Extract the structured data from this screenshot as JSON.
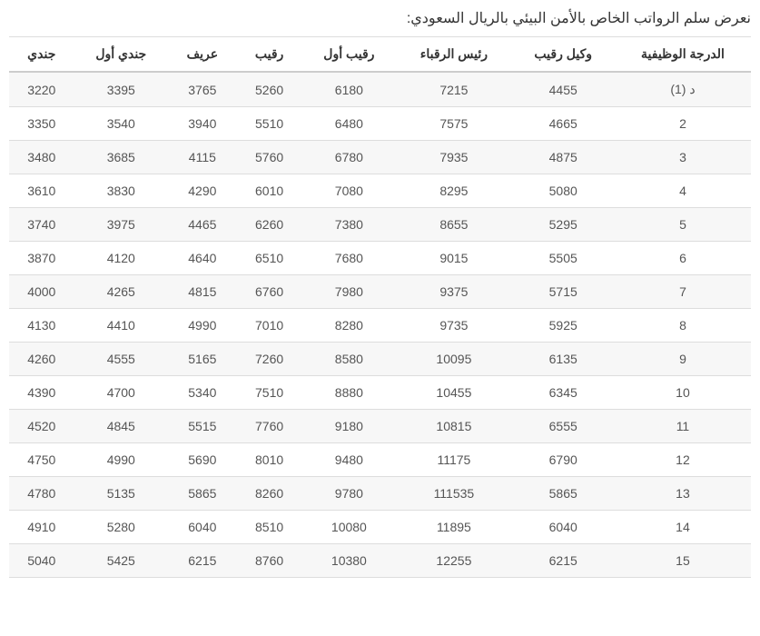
{
  "title": "نعرض سلم الرواتب الخاص بالأمن البيئي بالريال السعودي:",
  "table": {
    "columns": [
      "الدرجة الوظيفية",
      "وكيل رقيب",
      "رئيس الرقباء",
      "رقيب أول",
      "رقيب",
      "عريف",
      "جندي أول",
      "جندي"
    ],
    "rows": [
      [
        "د (1)",
        "4455",
        "7215",
        "6180",
        "5260",
        "3765",
        "3395",
        "3220"
      ],
      [
        "2",
        "4665",
        "7575",
        "6480",
        "5510",
        "3940",
        "3540",
        "3350"
      ],
      [
        "3",
        "4875",
        "7935",
        "6780",
        "5760",
        "4115",
        "3685",
        "3480"
      ],
      [
        "4",
        "5080",
        "8295",
        "7080",
        "6010",
        "4290",
        "3830",
        "3610"
      ],
      [
        "5",
        "5295",
        "8655",
        "7380",
        "6260",
        "4465",
        "3975",
        "3740"
      ],
      [
        "6",
        "5505",
        "9015",
        "7680",
        "6510",
        "4640",
        "4120",
        "3870"
      ],
      [
        "7",
        "5715",
        "9375",
        "7980",
        "6760",
        "4815",
        "4265",
        "4000"
      ],
      [
        "8",
        "5925",
        "9735",
        "8280",
        "7010",
        "4990",
        "4410",
        "4130"
      ],
      [
        "9",
        "6135",
        "10095",
        "8580",
        "7260",
        "5165",
        "4555",
        "4260"
      ],
      [
        "10",
        "6345",
        "10455",
        "8880",
        "7510",
        "5340",
        "4700",
        "4390"
      ],
      [
        "11",
        "6555",
        "10815",
        "9180",
        "7760",
        "5515",
        "4845",
        "4520"
      ],
      [
        "12",
        "6790",
        "11175",
        "9480",
        "8010",
        "5690",
        "4990",
        "4750"
      ],
      [
        "13",
        "5865",
        "111535",
        "9780",
        "8260",
        "5865",
        "5135",
        "4780"
      ],
      [
        "14",
        "6040",
        "11895",
        "10080",
        "8510",
        "6040",
        "5280",
        "4910"
      ],
      [
        "15",
        "6215",
        "12255",
        "10380",
        "8760",
        "6215",
        "5425",
        "5040"
      ]
    ]
  }
}
